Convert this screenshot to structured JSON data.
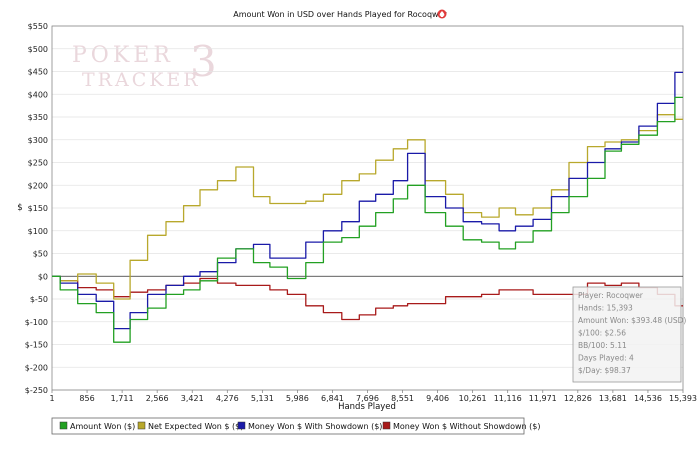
{
  "chart_data": {
    "type": "line",
    "title": "Amount Won in USD over Hands Played for Rocoqwer",
    "xlabel": "Hands Played",
    "ylabel": "$",
    "x_ticks": [
      "1",
      "856",
      "1,711",
      "2,566",
      "3,421",
      "4,276",
      "5,131",
      "5,986",
      "6,841",
      "7,696",
      "8,551",
      "9,406",
      "10,261",
      "11,116",
      "11,971",
      "12,826",
      "13,681",
      "14,536",
      "15,393"
    ],
    "y_ticks": [
      "$550",
      "$500",
      "$450",
      "$400",
      "$350",
      "$300",
      "$250",
      "$200",
      "$150",
      "$100",
      "$50",
      "$0",
      "$-50",
      "$-100",
      "$-150",
      "$-200",
      "$-250"
    ],
    "xlim": [
      1,
      15393
    ],
    "ylim": [
      -250,
      550
    ],
    "grid": true,
    "legend_position": "bottom",
    "x": [
      1,
      400,
      856,
      1300,
      1711,
      2100,
      2566,
      3000,
      3421,
      3800,
      4276,
      4700,
      5131,
      5500,
      5986,
      6400,
      6841,
      7300,
      7696,
      8100,
      8551,
      8800,
      9406,
      9800,
      10261,
      10700,
      11116,
      11500,
      11971,
      12400,
      12826,
      13300,
      13681,
      14100,
      14536,
      15000,
      15393
    ],
    "series": [
      {
        "name": "Amount Won ($)",
        "color": "#22a022",
        "values": [
          0,
          -30,
          -60,
          -80,
          -145,
          -95,
          -70,
          -40,
          -30,
          -10,
          40,
          60,
          30,
          20,
          -5,
          30,
          75,
          85,
          110,
          140,
          170,
          200,
          140,
          110,
          80,
          75,
          60,
          75,
          100,
          140,
          175,
          215,
          275,
          290,
          310,
          340,
          393
        ]
      },
      {
        "name": "Net Expected Won $ ($)",
        "color": "#b8a82c",
        "values": [
          0,
          -10,
          5,
          -15,
          -50,
          35,
          90,
          120,
          155,
          190,
          210,
          240,
          175,
          160,
          160,
          165,
          180,
          210,
          225,
          255,
          280,
          300,
          210,
          180,
          140,
          130,
          150,
          135,
          150,
          190,
          250,
          285,
          295,
          300,
          320,
          355,
          345
        ]
      },
      {
        "name": "Money Won $ With Showdown ($)",
        "color": "#1a1aa8",
        "values": [
          0,
          -15,
          -40,
          -55,
          -115,
          -80,
          -40,
          -20,
          0,
          10,
          30,
          60,
          70,
          40,
          40,
          75,
          100,
          120,
          165,
          180,
          210,
          270,
          175,
          150,
          120,
          115,
          100,
          110,
          125,
          175,
          215,
          250,
          280,
          295,
          330,
          380,
          448
        ]
      },
      {
        "name": "Money Won $ Without Showdown ($)",
        "color": "#a81a1a",
        "values": [
          0,
          -10,
          -25,
          -30,
          -45,
          -35,
          -30,
          -20,
          -15,
          -5,
          -15,
          -20,
          -20,
          -30,
          -40,
          -65,
          -80,
          -95,
          -85,
          -70,
          -65,
          -60,
          -60,
          -45,
          -45,
          -40,
          -30,
          -30,
          -40,
          -40,
          -40,
          -15,
          -20,
          -15,
          -25,
          -40,
          -65
        ]
      }
    ]
  },
  "watermark": {
    "line1": "POKER",
    "line2": "TRACKER",
    "badge": "3"
  },
  "info_box": [
    "Player: Rocoqwer",
    "Hands: 15,393",
    "Amount Won: $393.48 (USD)",
    "$/100: $2.56",
    "BB/100: 5.11",
    "Days Played: 4",
    "$/Day: $98.37"
  ],
  "icons": {
    "title_icon": "poker-spade-chip-icon",
    "title_icon_color": "#e03a3a"
  }
}
